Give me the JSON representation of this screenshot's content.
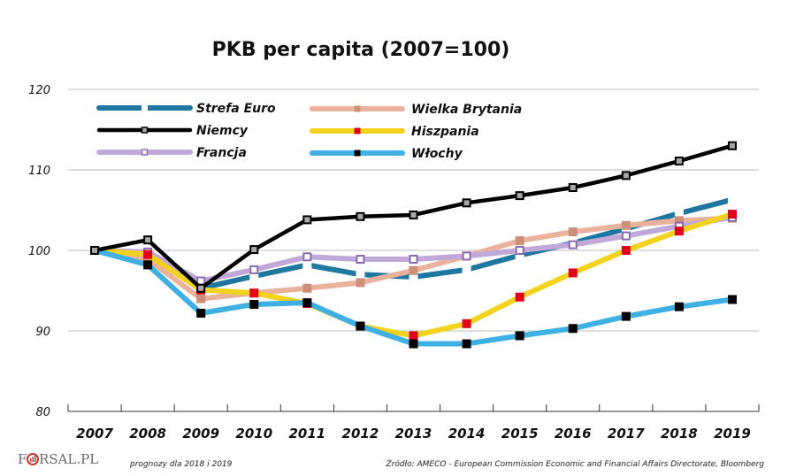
{
  "chart_data": {
    "type": "line",
    "title": "PKB per capita (2007=100)",
    "xlabel": "",
    "ylabel": "",
    "ylim": [
      80,
      120
    ],
    "yticks": [
      "80",
      "90",
      "100",
      "110",
      "120"
    ],
    "grid": true,
    "legend_position": "top-left",
    "categories": [
      "2007",
      "2008",
      "2009",
      "2010",
      "2011",
      "2012",
      "2013",
      "2014",
      "2015",
      "2016",
      "2017",
      "2018",
      "2019"
    ],
    "series": [
      {
        "name": "Strefa Euro",
        "color": "#1e77a0",
        "marker": "#ffffff",
        "marker_border": "#ffffff",
        "dashed": true,
        "values": [
          100,
          99.6,
          95.3,
          96.8,
          98.2,
          97.0,
          96.7,
          97.6,
          99.4,
          100.9,
          102.7,
          104.6,
          106.3
        ]
      },
      {
        "name": "Wielka Brytania",
        "color": "#eab29c",
        "marker": "#cd8f7a",
        "marker_border": "#cd8f7a",
        "dashed": false,
        "values": [
          100,
          98.9,
          94.0,
          94.7,
          95.3,
          96.0,
          97.5,
          99.3,
          101.2,
          102.3,
          103.1,
          103.7,
          104.0
        ]
      },
      {
        "name": "Francja",
        "color": "#c0a8d8",
        "marker": "#ffffff",
        "marker_border": "#8a6ab0",
        "dashed": false,
        "values": [
          100,
          99.8,
          96.2,
          97.6,
          99.2,
          98.9,
          98.9,
          99.3,
          100.0,
          100.7,
          101.8,
          103.0,
          104.1
        ]
      },
      {
        "name": "Hiszpania",
        "color": "#f2d21d",
        "marker": "#e3001b",
        "marker_border": "#e3001b",
        "dashed": false,
        "values": [
          100,
          99.5,
          95.1,
          94.7,
          93.4,
          90.6,
          89.4,
          90.9,
          94.2,
          97.2,
          100.0,
          102.4,
          104.5
        ]
      },
      {
        "name": "Włochy",
        "color": "#3fb0e3",
        "marker": "#000000",
        "marker_border": "#000000",
        "dashed": false,
        "values": [
          100,
          98.2,
          92.2,
          93.3,
          93.5,
          90.6,
          88.4,
          88.4,
          89.4,
          90.3,
          91.8,
          93.0,
          93.9
        ]
      },
      {
        "name": "Niemcy",
        "color": "#000000",
        "marker": "#a8a8a8",
        "marker_border": "#000000",
        "dashed": false,
        "values": [
          100,
          101.3,
          95.3,
          100.1,
          103.8,
          104.2,
          104.4,
          105.9,
          106.8,
          107.8,
          109.3,
          111.1,
          113.0
        ]
      }
    ],
    "legend_order": [
      [
        "Strefa Euro",
        "Niemcy",
        "Francja"
      ],
      [
        "Wielka Brytania",
        "Hiszpania",
        "Włochy"
      ]
    ]
  },
  "footer": {
    "logo": "FORSAL.PL",
    "logo_prefix": "F",
    "logo_suffix": "RSAL.PL",
    "note": "prognozy dla 2018 i 2019",
    "source": "Źródło: AMECO - European Commission Economic and Financial Affairs Directorate, Bloomberg"
  }
}
